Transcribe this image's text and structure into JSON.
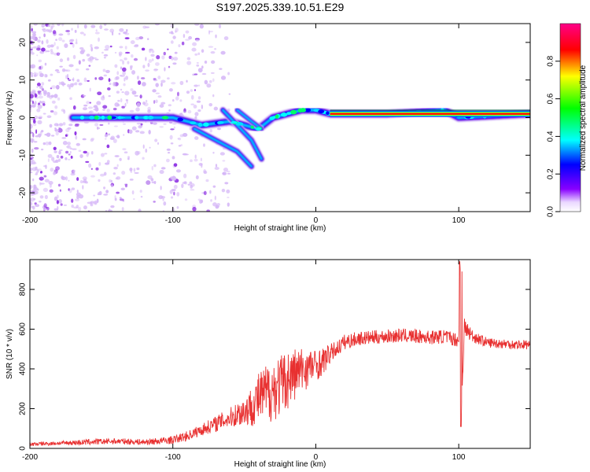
{
  "title": "S197.2025.339.10.51.E29",
  "chart_data": [
    {
      "type": "heatmap",
      "xlabel": "Height of straight line (km)",
      "ylabel": "Frequency (Hz)",
      "xlim": [
        -200,
        150
      ],
      "ylim": [
        -25,
        25
      ],
      "xticks": [
        -200,
        -100,
        0,
        100
      ],
      "yticks": [
        -20,
        -10,
        0,
        10,
        20
      ],
      "colorbar": {
        "label": "Normalized spectral amplitude",
        "range": [
          0,
          1
        ],
        "ticks": [
          "0.0",
          "0.2",
          "0.4",
          "0.6",
          "0.8"
        ]
      },
      "features": {
        "main_track": {
          "x": [
            -170,
            -150,
            -120,
            -100,
            -80,
            -60,
            -40,
            -30,
            -20,
            -10,
            0,
            10,
            50,
            90,
            100,
            150
          ],
          "y": [
            0,
            0,
            0,
            0,
            -2,
            -1,
            -3,
            0,
            1,
            2,
            2,
            1,
            1,
            2,
            0,
            1
          ]
        },
        "descending_branch_1": {
          "x": [
            -85,
            -70,
            -55,
            -45
          ],
          "y": [
            -3,
            -6,
            -9,
            -13
          ]
        },
        "descending_branch_2": {
          "x": [
            -65,
            -55,
            -45,
            -38
          ],
          "y": [
            2,
            -2,
            -6,
            -11
          ]
        },
        "descending_branch_3": {
          "x": [
            -55,
            -45,
            -38
          ],
          "y": [
            2,
            -1,
            -3
          ]
        },
        "constant_tone": {
          "x": [
            10,
            150
          ],
          "y": [
            1,
            1
          ]
        },
        "noise_region_x": [
          -200,
          -60
        ]
      }
    },
    {
      "type": "line",
      "xlabel": "Height of straight line (km)",
      "ylabel": "SNR (10 * v/v)",
      "xlim": [
        -200,
        150
      ],
      "ylim": [
        0,
        950
      ],
      "xticks": [
        -200,
        -100,
        0,
        100
      ],
      "yticks": [
        0,
        200,
        400,
        600,
        800
      ],
      "series": [
        {
          "name": "SNR",
          "color": "#e83030",
          "x": [
            -200,
            -180,
            -160,
            -140,
            -120,
            -100,
            -90,
            -80,
            -70,
            -60,
            -50,
            -45,
            -40,
            -35,
            -30,
            -25,
            -20,
            -15,
            -10,
            -5,
            0,
            5,
            10,
            15,
            20,
            30,
            40,
            50,
            60,
            70,
            80,
            90,
            95,
            100,
            101,
            102,
            104,
            110,
            120,
            130,
            140,
            150
          ],
          "y": [
            20,
            25,
            30,
            35,
            30,
            40,
            60,
            90,
            120,
            150,
            180,
            200,
            240,
            260,
            280,
            300,
            330,
            360,
            380,
            400,
            410,
            430,
            470,
            500,
            530,
            550,
            555,
            560,
            565,
            560,
            555,
            560,
            550,
            540,
            900,
            230,
            600,
            560,
            530,
            525,
            520,
            520
          ],
          "noise_amplitude": [
            10,
            10,
            15,
            15,
            15,
            20,
            25,
            30,
            40,
            50,
            80,
            100,
            130,
            150,
            160,
            160,
            150,
            140,
            120,
            100,
            80,
            70,
            50,
            40,
            40,
            35,
            35,
            35,
            35,
            35,
            35,
            35,
            35,
            35,
            0,
            0,
            60,
            30,
            25,
            25,
            25,
            25
          ]
        }
      ]
    }
  ]
}
